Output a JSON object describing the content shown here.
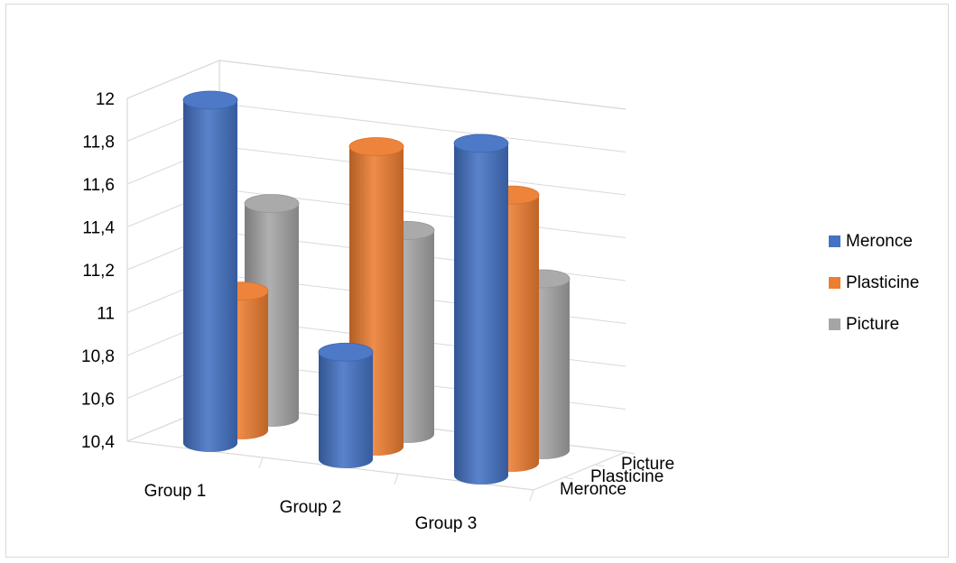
{
  "chart_data": {
    "type": "bar",
    "subtype": "3d-cylinder",
    "title": "",
    "categories": [
      "Group 1",
      "Group 2",
      "Group 3"
    ],
    "series": [
      {
        "name": "Meronce",
        "values": [
          12.0,
          10.9,
          11.95
        ],
        "color": "#4472C4"
      },
      {
        "name": "Plasticine",
        "values": [
          11.05,
          11.8,
          11.65
        ],
        "color": "#ED7D31"
      },
      {
        "name": "Picture",
        "values": [
          11.4,
          11.35,
          11.2
        ],
        "color": "#A5A5A5"
      }
    ],
    "y_ticks": [
      "12",
      "11,8",
      "11,6",
      "11,4",
      "11,2",
      "11",
      "10,8",
      "10,6",
      "10,4"
    ],
    "ylim": [
      10.4,
      12.0
    ],
    "depth_labels": [
      "Picture",
      "Plasticine",
      "Meronce"
    ],
    "legend": {
      "position": "right",
      "items": [
        "Meronce",
        "Plasticine",
        "Picture"
      ]
    },
    "grid": true
  }
}
